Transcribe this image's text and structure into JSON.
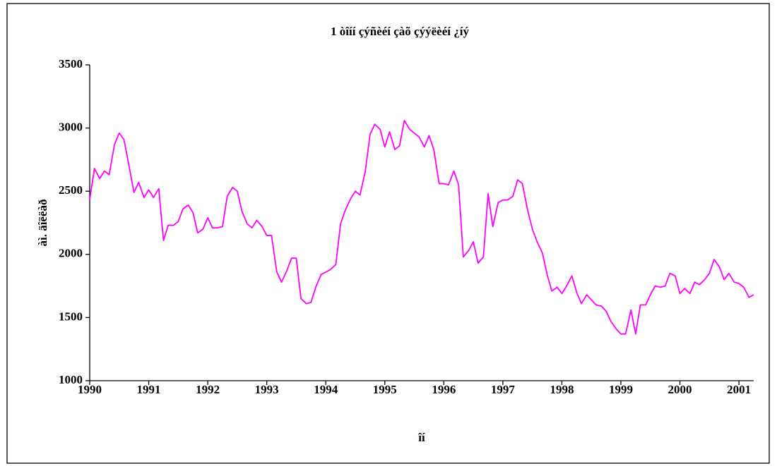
{
  "chart_data": {
    "type": "line",
    "title": "1 òîíí çýñèéí çàõ çýýëèéí ¿íý",
    "x_label": "îí",
    "y_label": "àì. äîëëàð",
    "x": [
      1990,
      1990.08,
      1990.17,
      1990.25,
      1990.33,
      1990.42,
      1990.5,
      1990.58,
      1990.67,
      1990.75,
      1990.83,
      1990.92,
      1991,
      1991.08,
      1991.17,
      1991.25,
      1991.33,
      1991.42,
      1991.5,
      1991.58,
      1991.67,
      1991.75,
      1991.83,
      1991.92,
      1992,
      1992.08,
      1992.17,
      1992.25,
      1992.33,
      1992.42,
      1992.5,
      1992.58,
      1992.67,
      1992.75,
      1992.83,
      1992.92,
      1993,
      1993.08,
      1993.17,
      1993.25,
      1993.33,
      1993.42,
      1993.5,
      1993.58,
      1993.67,
      1993.75,
      1993.83,
      1993.92,
      1994,
      1994.08,
      1994.17,
      1994.25,
      1994.33,
      1994.42,
      1994.5,
      1994.58,
      1994.67,
      1994.75,
      1994.83,
      1994.92,
      1995,
      1995.08,
      1995.17,
      1995.25,
      1995.33,
      1995.42,
      1995.5,
      1995.58,
      1995.67,
      1995.75,
      1995.83,
      1995.92,
      1996,
      1996.08,
      1996.17,
      1996.25,
      1996.33,
      1996.42,
      1996.5,
      1996.58,
      1996.67,
      1996.75,
      1996.83,
      1996.92,
      1997,
      1997.08,
      1997.17,
      1997.25,
      1997.33,
      1997.42,
      1997.5,
      1997.58,
      1997.67,
      1997.75,
      1997.83,
      1997.92,
      1998,
      1998.08,
      1998.17,
      1998.25,
      1998.33,
      1998.42,
      1998.5,
      1998.58,
      1998.67,
      1998.75,
      1998.83,
      1998.92,
      1999,
      1999.08,
      1999.17,
      1999.25,
      1999.33,
      1999.42,
      1999.5,
      1999.58,
      1999.67,
      1999.75,
      1999.83,
      1999.92,
      2000,
      2000.08,
      2000.17,
      2000.25,
      2000.33,
      2000.42,
      2000.5,
      2000.58,
      2000.67,
      2000.75,
      2000.83,
      2000.92,
      2001,
      2001.08,
      2001.17,
      2001.25
    ],
    "series": [
      {
        "color": "#ff00ff",
        "values": [
          2430,
          2680,
          2600,
          2660,
          2630,
          2870,
          2960,
          2910,
          2690,
          2490,
          2570,
          2450,
          2510,
          2450,
          2520,
          2110,
          2230,
          2230,
          2260,
          2360,
          2390,
          2330,
          2170,
          2200,
          2290,
          2210,
          2210,
          2220,
          2460,
          2530,
          2500,
          2340,
          2240,
          2210,
          2270,
          2220,
          2150,
          2150,
          1860,
          1780,
          1860,
          1970,
          1970,
          1650,
          1610,
          1620,
          1740,
          1840,
          1860,
          1880,
          1920,
          2240,
          2350,
          2440,
          2500,
          2470,
          2660,
          2950,
          3030,
          2990,
          2850,
          2970,
          2830,
          2860,
          3060,
          2990,
          2960,
          2930,
          2850,
          2940,
          2830,
          2560,
          2560,
          2550,
          2660,
          2550,
          1980,
          2030,
          2100,
          1930,
          1980,
          2480,
          2220,
          2410,
          2430,
          2430,
          2460,
          2590,
          2560,
          2350,
          2200,
          2100,
          2010,
          1840,
          1710,
          1740,
          1690,
          1750,
          1830,
          1700,
          1610,
          1680,
          1640,
          1600,
          1590,
          1550,
          1470,
          1410,
          1370,
          1370,
          1560,
          1370,
          1600,
          1600,
          1680,
          1750,
          1740,
          1750,
          1850,
          1830,
          1690,
          1730,
          1690,
          1780,
          1760,
          1800,
          1850,
          1960,
          1900,
          1800,
          1850,
          1780,
          1770,
          1740,
          1660,
          1680
        ]
      }
    ],
    "xlim": [
      1990,
      2001.25
    ],
    "xticks": [
      1990,
      1991,
      1992,
      1993,
      1994,
      1995,
      1996,
      1997,
      1998,
      1999,
      2000,
      2001
    ],
    "ylim": [
      1000,
      3500
    ],
    "yticks": [
      1000,
      1500,
      2000,
      2500,
      3000,
      3500
    ],
    "grid": false
  }
}
